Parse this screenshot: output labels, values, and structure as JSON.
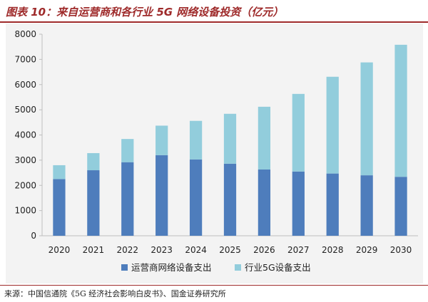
{
  "title": "图表 10：来自运营商和各行业 5G 网络设备投资（亿元）",
  "source": "来源：中国信通院《5G 经济社会影响白皮书》、国金证券研究所",
  "colors": {
    "operator": "#4e7dbc",
    "industry": "#92cddc",
    "brand": "#9e2a2a"
  },
  "chart_data": {
    "type": "bar",
    "stacked": true,
    "categories": [
      "2020",
      "2021",
      "2022",
      "2023",
      "2024",
      "2025",
      "2026",
      "2027",
      "2028",
      "2029",
      "2030"
    ],
    "series": [
      {
        "name": "运营商网络设备支出",
        "values": [
          2250,
          2600,
          2920,
          3200,
          3030,
          2860,
          2630,
          2550,
          2470,
          2400,
          2340
        ]
      },
      {
        "name": "行业5G设备支出",
        "values": [
          550,
          680,
          920,
          1170,
          1530,
          1980,
          2490,
          3080,
          3840,
          4480,
          5240
        ]
      }
    ],
    "yticks": [
      "0",
      "1000",
      "2000",
      "3000",
      "4000",
      "5000",
      "6000",
      "7000",
      "8000"
    ],
    "ylim": [
      0,
      8000
    ],
    "grid": false,
    "legend_position": "bottom"
  }
}
